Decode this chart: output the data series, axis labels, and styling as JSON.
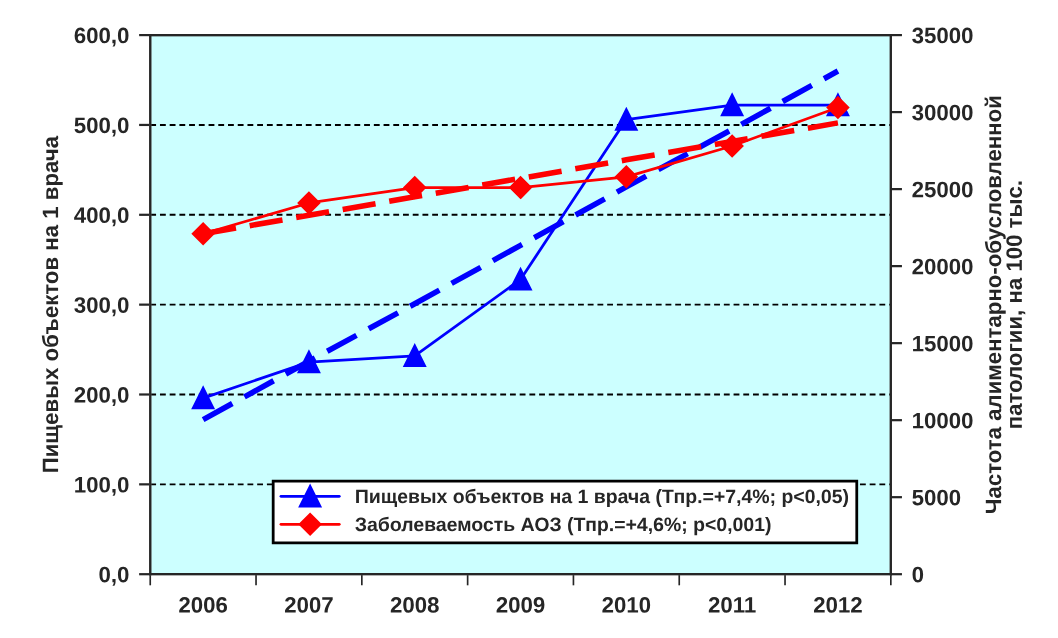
{
  "chart_data": {
    "type": "line",
    "categories": [
      "2006",
      "2007",
      "2008",
      "2009",
      "2010",
      "2011",
      "2012"
    ],
    "series": [
      {
        "name": "Пищевых объектов на 1 врача (Тпр.=+7,4%; р<0,05)",
        "color": "#0000ff",
        "marker": "triangle",
        "line_style": "solid",
        "values": [
          196,
          236,
          243,
          328,
          506,
          522,
          522
        ]
      },
      {
        "name": "Заболеваемость АОЗ (Тпр.=+4,6%; р<0,001)",
        "color": "#ff0000",
        "marker": "diamond",
        "line_style": "solid",
        "axis": "y2",
        "values": [
          22100,
          24100,
          25100,
          25100,
          25800,
          27800,
          30300
        ]
      },
      {
        "type": "line",
        "color": "#0000ff",
        "marker": "none",
        "line_style": "dashed",
        "values": [
          172,
          237,
          301,
          366,
          431,
          495,
          560
        ]
      },
      {
        "type": "line",
        "color": "#ff0000",
        "marker": "none",
        "line_style": "dashed",
        "axis": "y2",
        "values": [
          22100,
          23300,
          24500,
          25700,
          26900,
          28100,
          29300
        ]
      }
    ],
    "ylabel": "Пищевых объектов на 1 врача",
    "y2label": "Частота алиментарно-обусловленной\nпатологии, на 100 тыс.",
    "ylim": [
      0,
      600
    ],
    "yticks": [
      {
        "value": 0,
        "label": "0,0"
      },
      {
        "value": 100,
        "label": "100,0"
      },
      {
        "value": 200,
        "label": "200,0"
      },
      {
        "value": 300,
        "label": "300,0"
      },
      {
        "value": 400,
        "label": "400,0"
      },
      {
        "value": 500,
        "label": "500,0"
      },
      {
        "value": 600,
        "label": "600,0"
      }
    ],
    "y2lim": [
      0,
      35000
    ],
    "y2ticks": [
      0,
      5000,
      10000,
      15000,
      20000,
      25000,
      30000,
      35000
    ],
    "grid": "y",
    "legend": "bottom"
  }
}
